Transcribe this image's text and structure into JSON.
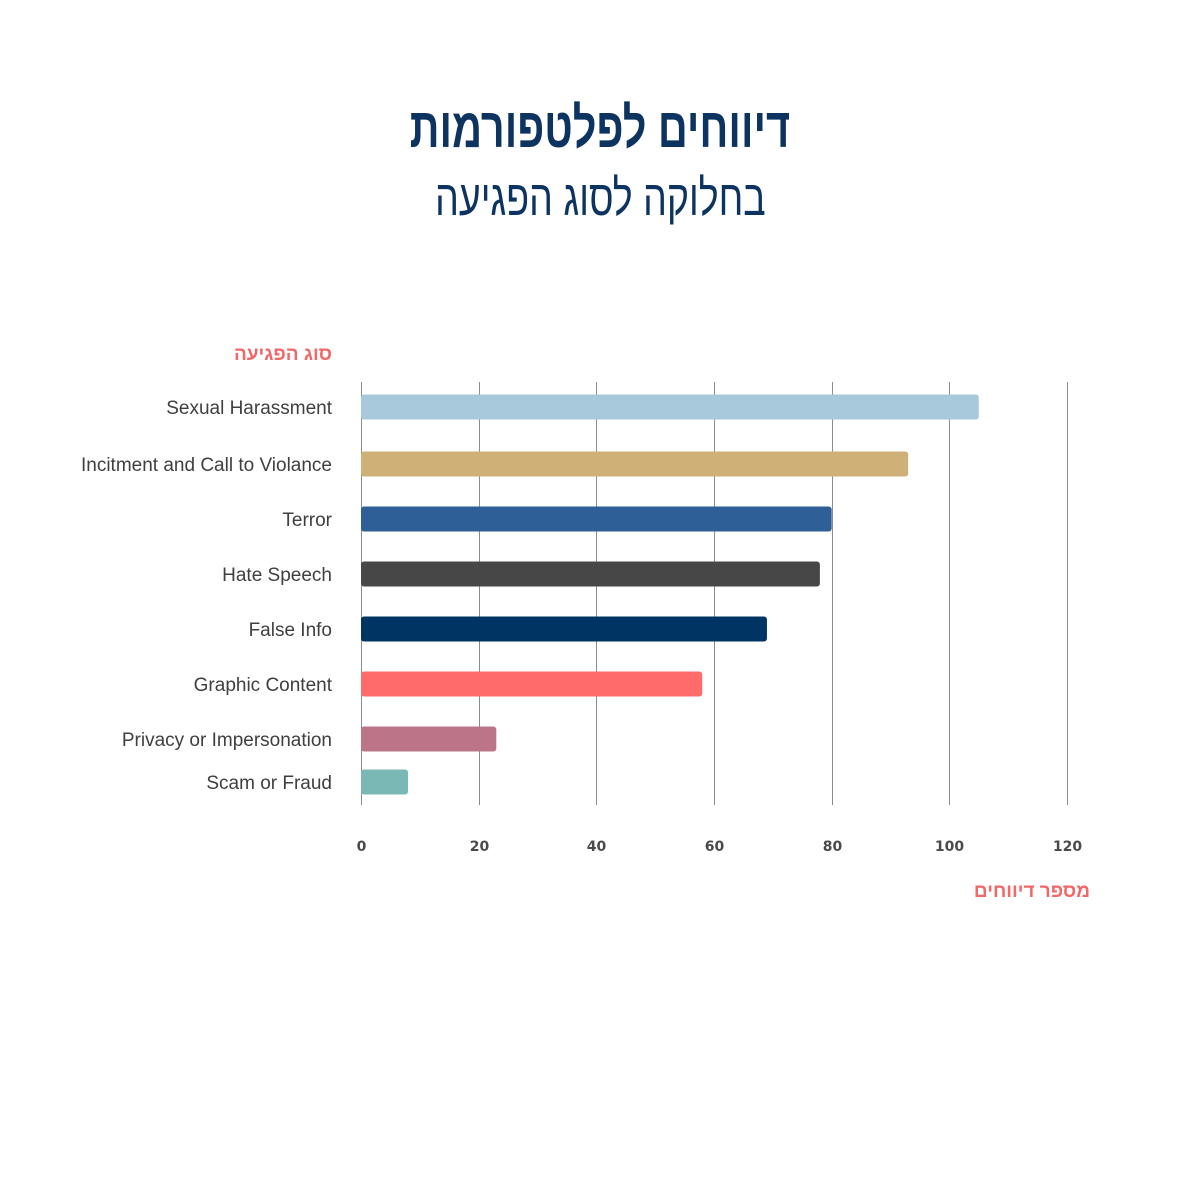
{
  "chart_data": {
    "type": "bar",
    "orientation": "horizontal",
    "title": "דיווחים לפלטפורמות",
    "subtitle": "בחלוקה לסוג הפגיעה",
    "ylabel": "סוג הפגיעה",
    "xlabel": "מספר דיווחים",
    "categories": [
      "Sexual Harassment",
      "Incitment and Call to Violance",
      "Terror",
      "Hate Speech",
      "False Info",
      "Graphic Content",
      "Privacy or Impersonation",
      "Scam or Fraud"
    ],
    "values": [
      105,
      93,
      80,
      78,
      69,
      58,
      23,
      8
    ],
    "colors": [
      "#a8c8db",
      "#cfb077",
      "#2e5f96",
      "#474747",
      "#003462",
      "#ff6b6b",
      "#bb7488",
      "#7ab8b6"
    ],
    "xlim": [
      0,
      120
    ],
    "xticks": [
      0,
      20,
      40,
      60,
      80,
      100,
      120
    ],
    "grid": true
  }
}
